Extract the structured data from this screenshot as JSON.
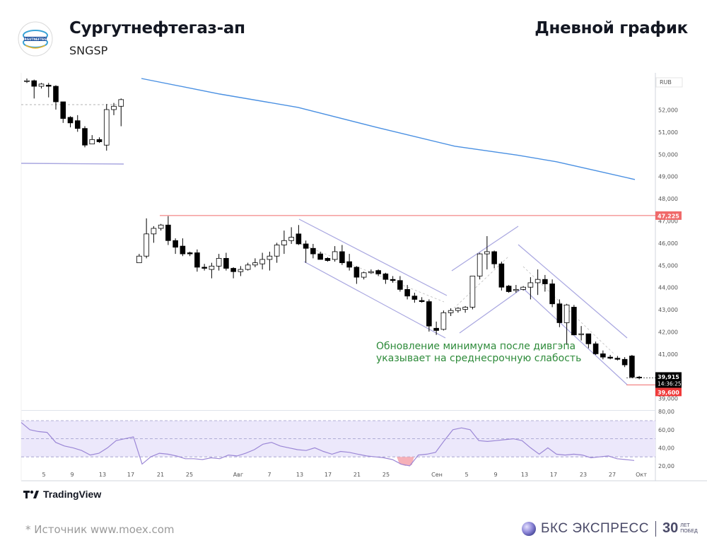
{
  "header": {
    "title": "Сургутнефтегаз-ап",
    "ticker": "SNGSP",
    "period": "Дневной график",
    "logo_text": "SURGUTNEFTEGAS"
  },
  "footer": {
    "source": "*  Источник www.moex.com",
    "tradingview": "TradingView",
    "brand": "БКС ЭКСПРЕСС",
    "brand_30": "30",
    "brand_sub1": "ЛЕТ",
    "brand_sub2": "ПОБЕД"
  },
  "colors": {
    "bull": "#ffffff",
    "bear": "#000000",
    "ma": "#4a90e2",
    "channel": "#a8a6e0",
    "resistance": "#f06a6a",
    "osc": "#9b87d6",
    "osc_band": "#ece8fb",
    "annotation": "#2e8b3a"
  },
  "chart_data": {
    "type": "candlestick",
    "currency": "RUB",
    "y_range": [
      38600,
      53400
    ],
    "y_ticks": [
      "52,000",
      "51,000",
      "50,000",
      "49,000",
      "48,000",
      "47,000",
      "46,000",
      "45,000",
      "44,000",
      "43,000",
      "42,000",
      "41,000",
      "40,000",
      "39,000"
    ],
    "x_ticks": [
      "5",
      "9",
      "13",
      "17",
      "21",
      "25",
      "Авг",
      "7",
      "13",
      "17",
      "21",
      "25",
      "Сен",
      "5",
      "9",
      "13",
      "17",
      "23",
      "27",
      "Окт"
    ],
    "price_labels": {
      "current": "39,915",
      "countdown": "14:36:25",
      "resistance": "47,225",
      "low": "39,600"
    },
    "annotation": "Обновление минимума после дивгэпа\nуказывает на среднесрочную слабость",
    "candles": [
      [
        53.3,
        53.4,
        53.2,
        53.3
      ],
      [
        53.3,
        53.35,
        52.5,
        53.05
      ],
      [
        53.05,
        53.2,
        52.95,
        53.15
      ],
      [
        53.1,
        53.2,
        52.55,
        53.05
      ],
      [
        53.05,
        53.1,
        52.0,
        52.35
      ],
      [
        52.35,
        52.35,
        51.4,
        51.6
      ],
      [
        51.65,
        51.7,
        51.2,
        51.4
      ],
      [
        51.5,
        51.75,
        51.0,
        51.15
      ],
      [
        51.15,
        51.25,
        50.3,
        50.4
      ],
      [
        50.45,
        50.85,
        50.45,
        50.65
      ],
      [
        50.65,
        50.75,
        50.5,
        50.55
      ],
      [
        50.4,
        52.25,
        50.15,
        52.0
      ],
      [
        52.0,
        52.3,
        51.75,
        52.15
      ],
      [
        52.15,
        52.5,
        51.25,
        52.45
      ],
      [
        45.1,
        45.5,
        45.1,
        45.4
      ],
      [
        45.4,
        47.1,
        45.3,
        46.4
      ],
      [
        46.4,
        46.75,
        46.0,
        46.65
      ],
      [
        46.65,
        46.85,
        46.55,
        46.8
      ],
      [
        46.8,
        47.2,
        45.9,
        46.1
      ],
      [
        46.1,
        46.2,
        45.5,
        45.8
      ],
      [
        45.85,
        46.2,
        45.4,
        45.5
      ],
      [
        45.55,
        45.6,
        45.4,
        45.5
      ],
      [
        45.55,
        45.7,
        44.7,
        44.9
      ],
      [
        44.9,
        45.05,
        44.75,
        44.85
      ],
      [
        44.8,
        45.1,
        44.4,
        44.95
      ],
      [
        44.95,
        45.5,
        44.75,
        45.3
      ],
      [
        45.3,
        45.55,
        44.75,
        44.85
      ],
      [
        44.85,
        44.9,
        44.4,
        44.7
      ],
      [
        44.7,
        44.95,
        44.5,
        44.8
      ],
      [
        44.8,
        45.1,
        44.75,
        45.0
      ],
      [
        45.0,
        45.3,
        44.9,
        45.1
      ],
      [
        45.05,
        45.55,
        44.8,
        45.25
      ],
      [
        45.25,
        45.6,
        44.75,
        45.4
      ],
      [
        45.4,
        46.0,
        45.1,
        45.9
      ],
      [
        45.9,
        46.55,
        45.5,
        46.1
      ],
      [
        46.1,
        46.7,
        45.95,
        46.25
      ],
      [
        46.4,
        46.8,
        45.9,
        45.95
      ],
      [
        45.95,
        46.1,
        45.1,
        45.75
      ],
      [
        45.75,
        45.95,
        45.3,
        45.5
      ],
      [
        45.5,
        45.6,
        45.25,
        45.25
      ],
      [
        45.3,
        45.35,
        45.15,
        45.2
      ],
      [
        45.25,
        45.85,
        45.15,
        45.6
      ],
      [
        45.6,
        45.9,
        45.0,
        45.1
      ],
      [
        45.15,
        45.5,
        44.75,
        44.9
      ],
      [
        44.9,
        44.95,
        44.15,
        44.45
      ],
      [
        44.45,
        44.7,
        44.35,
        44.65
      ],
      [
        44.65,
        44.8,
        44.6,
        44.7
      ],
      [
        44.75,
        44.8,
        44.5,
        44.6
      ],
      [
        44.6,
        44.65,
        44.15,
        44.35
      ],
      [
        44.35,
        44.5,
        44.2,
        44.3
      ],
      [
        44.3,
        44.5,
        43.8,
        43.9
      ],
      [
        43.9,
        44.1,
        43.45,
        43.6
      ],
      [
        43.6,
        43.75,
        43.3,
        43.45
      ],
      [
        43.4,
        43.55,
        43.3,
        43.35
      ],
      [
        43.35,
        43.45,
        42.0,
        42.25
      ],
      [
        42.15,
        42.45,
        41.85,
        42.05
      ],
      [
        42.1,
        42.95,
        42.05,
        42.85
      ],
      [
        42.85,
        43.05,
        42.7,
        42.95
      ],
      [
        42.95,
        43.1,
        42.85,
        43.05
      ],
      [
        43.0,
        43.15,
        42.85,
        43.1
      ],
      [
        43.1,
        44.5,
        43.0,
        44.5
      ],
      [
        44.5,
        45.55,
        44.35,
        45.5
      ],
      [
        45.5,
        46.3,
        44.8,
        45.6
      ],
      [
        45.6,
        45.65,
        44.85,
        45.05
      ],
      [
        45.05,
        45.15,
        43.85,
        44.0
      ],
      [
        44.05,
        44.1,
        43.75,
        43.8
      ],
      [
        43.85,
        44.1,
        43.75,
        43.9
      ],
      [
        43.9,
        44.05,
        43.85,
        44.0
      ],
      [
        44.0,
        44.45,
        43.45,
        44.2
      ],
      [
        44.2,
        44.8,
        43.65,
        44.35
      ],
      [
        44.35,
        44.55,
        43.8,
        44.15
      ],
      [
        44.15,
        44.35,
        43.1,
        43.25
      ],
      [
        43.25,
        43.45,
        42.2,
        42.4
      ],
      [
        42.4,
        43.25,
        41.4,
        43.2
      ],
      [
        43.1,
        43.2,
        42.0,
        41.85
      ],
      [
        41.9,
        42.25,
        41.6,
        41.9
      ],
      [
        41.9,
        41.9,
        41.25,
        41.45
      ],
      [
        41.45,
        41.55,
        40.95,
        41.0
      ],
      [
        41.0,
        41.15,
        40.75,
        40.85
      ],
      [
        40.85,
        40.95,
        40.75,
        40.8
      ],
      [
        40.8,
        40.9,
        40.7,
        40.75
      ],
      [
        40.75,
        40.85,
        40.4,
        40.5
      ],
      [
        40.9,
        40.95,
        39.9,
        39.95
      ],
      [
        39.95,
        40.0,
        39.85,
        39.915
      ]
    ],
    "ma": [
      [
        53.4,
        0
      ],
      [
        52.7,
        10
      ],
      [
        52.1,
        20
      ],
      [
        51.2,
        30
      ],
      [
        50.35,
        40
      ],
      [
        49.95,
        48
      ],
      [
        49.65,
        53
      ],
      [
        49.25,
        58
      ],
      [
        48.85,
        63
      ]
    ],
    "rsi": [
      [
        68,
        0
      ],
      [
        60,
        2
      ],
      [
        58,
        4
      ],
      [
        57,
        6
      ],
      [
        46,
        8
      ],
      [
        42,
        10
      ],
      [
        40,
        12
      ],
      [
        37,
        14
      ],
      [
        32,
        16
      ],
      [
        34,
        18
      ],
      [
        40,
        20
      ],
      [
        48,
        22
      ],
      [
        50,
        24
      ],
      [
        52,
        26
      ],
      [
        22,
        28
      ],
      [
        30,
        30
      ],
      [
        34,
        32
      ],
      [
        33,
        34
      ],
      [
        31,
        36
      ],
      [
        28,
        38
      ],
      [
        28,
        40
      ],
      [
        27,
        42
      ],
      [
        29,
        44
      ],
      [
        28,
        46
      ],
      [
        32,
        48
      ],
      [
        31,
        50
      ],
      [
        34,
        52
      ],
      [
        38,
        54
      ],
      [
        44,
        56
      ],
      [
        46,
        58
      ],
      [
        42,
        60
      ],
      [
        40,
        62
      ],
      [
        38,
        64
      ],
      [
        37,
        66
      ],
      [
        40,
        68
      ],
      [
        36,
        70
      ],
      [
        33,
        72
      ],
      [
        36,
        74
      ],
      [
        35,
        76
      ],
      [
        33,
        78
      ],
      [
        31,
        80
      ],
      [
        30,
        82
      ],
      [
        29,
        84
      ],
      [
        27,
        86
      ],
      [
        22,
        88
      ],
      [
        21,
        89
      ],
      [
        20,
        90
      ],
      [
        32,
        92
      ],
      [
        33,
        94
      ],
      [
        35,
        96
      ],
      [
        48,
        98
      ],
      [
        60,
        100
      ],
      [
        62,
        102
      ],
      [
        60,
        104
      ],
      [
        48,
        106
      ],
      [
        47,
        108
      ],
      [
        48,
        110
      ],
      [
        49,
        112
      ],
      [
        50,
        114
      ],
      [
        48,
        116
      ],
      [
        40,
        118
      ],
      [
        33,
        120
      ],
      [
        40,
        122
      ],
      [
        33,
        124
      ],
      [
        32,
        126
      ],
      [
        33,
        128
      ],
      [
        32,
        130
      ],
      [
        29,
        132
      ],
      [
        30,
        134
      ],
      [
        31,
        136
      ],
      [
        28,
        138
      ],
      [
        27,
        140
      ],
      [
        26,
        142
      ]
    ]
  }
}
